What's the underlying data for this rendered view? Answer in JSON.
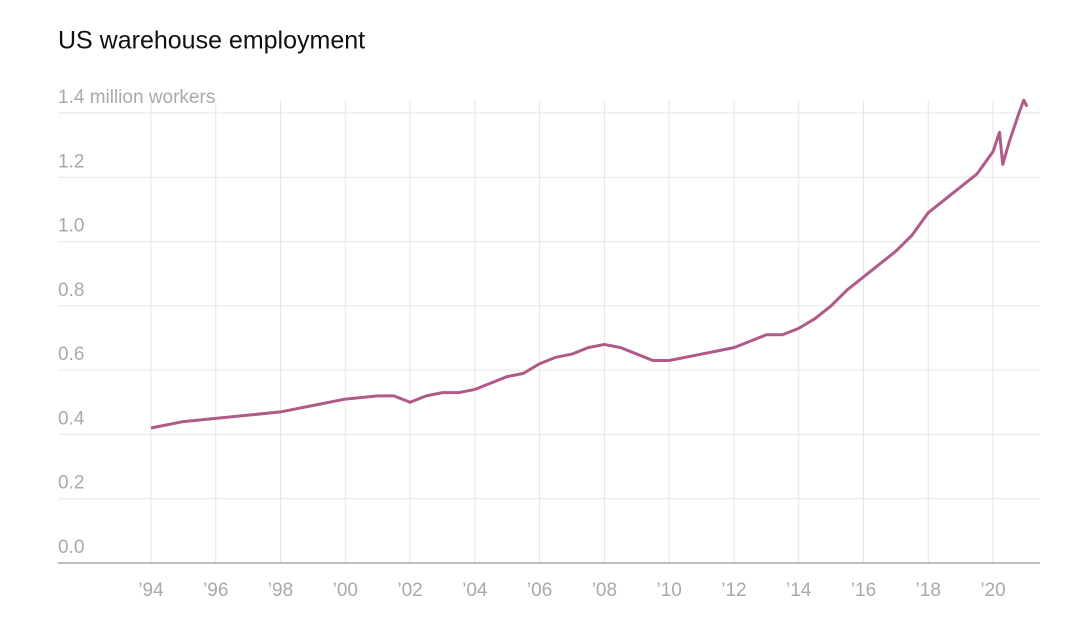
{
  "chart_data": {
    "type": "line",
    "title": "US warehouse employment",
    "x": [
      1994,
      1995,
      1996,
      1997,
      1998,
      1999,
      2000,
      2001,
      2001.5,
      2002,
      2002.5,
      2003,
      2003.5,
      2004,
      2004.5,
      2005,
      2005.5,
      2006,
      2006.5,
      2007,
      2007.5,
      2008,
      2008.5,
      2009,
      2009.5,
      2010,
      2010.5,
      2011,
      2011.5,
      2012,
      2012.5,
      2013,
      2013.5,
      2014,
      2014.5,
      2015,
      2015.5,
      2016,
      2016.5,
      2017,
      2017.5,
      2018,
      2018.5,
      2019,
      2019.5,
      2020,
      2020.2,
      2020.3,
      2020.5,
      2020.8,
      2020.95,
      2021.05
    ],
    "series": [
      {
        "color": "#b05a8a",
        "values": [
          0.42,
          0.44,
          0.45,
          0.46,
          0.47,
          0.49,
          0.51,
          0.52,
          0.52,
          0.5,
          0.52,
          0.53,
          0.53,
          0.54,
          0.56,
          0.58,
          0.59,
          0.62,
          0.64,
          0.65,
          0.67,
          0.68,
          0.67,
          0.65,
          0.63,
          0.63,
          0.64,
          0.65,
          0.66,
          0.67,
          0.69,
          0.71,
          0.71,
          0.73,
          0.76,
          0.8,
          0.85,
          0.89,
          0.93,
          0.97,
          1.02,
          1.09,
          1.13,
          1.17,
          1.21,
          1.28,
          1.34,
          1.24,
          1.31,
          1.4,
          1.44,
          1.42
        ]
      }
    ],
    "xlim": [
      1991.13,
      2021.45
    ],
    "xticks": [
      {
        "value": 1994,
        "label": "’94"
      },
      {
        "value": 1996,
        "label": "’96"
      },
      {
        "value": 1998,
        "label": "’98"
      },
      {
        "value": 2000,
        "label": "’00"
      },
      {
        "value": 2002,
        "label": "’02"
      },
      {
        "value": 2004,
        "label": "’04"
      },
      {
        "value": 2006,
        "label": "’06"
      },
      {
        "value": 2008,
        "label": "’08"
      },
      {
        "value": 2010,
        "label": "’10"
      },
      {
        "value": 2012,
        "label": "’12"
      },
      {
        "value": 2014,
        "label": "’14"
      },
      {
        "value": 2016,
        "label": "’16"
      },
      {
        "value": 2018,
        "label": "’18"
      },
      {
        "value": 2020,
        "label": "’20"
      }
    ],
    "ylim": [
      0,
      1.4
    ],
    "yticks": [
      {
        "value": 0,
        "label": "0.0"
      },
      0.2,
      0.4,
      0.6,
      0.8,
      {
        "value": 1,
        "label": "1.0"
      },
      1.2,
      {
        "value": 1.4,
        "label": "1.4 million workers"
      }
    ],
    "grid": true
  }
}
